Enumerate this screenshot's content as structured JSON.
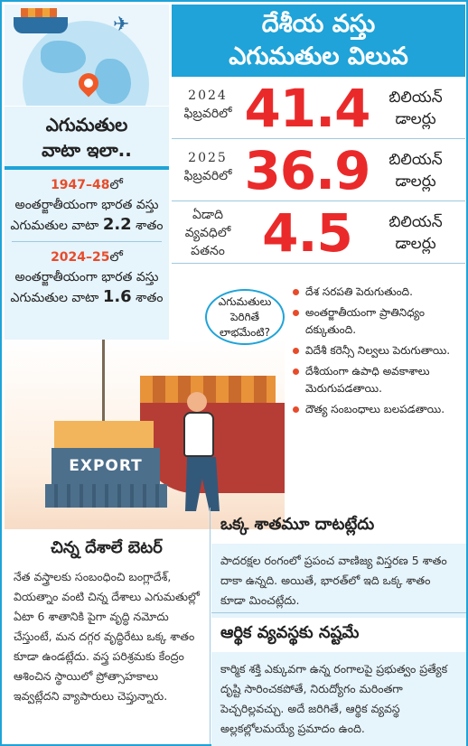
{
  "title": {
    "line1": "దేశీయ వస్తు",
    "line2": "ఎగుమతుల విలువ"
  },
  "stats": [
    {
      "label_year": "2024",
      "label_text": "ఫిబ్రవరిలో",
      "value": "41.4",
      "unit_line1": "బిలియన్",
      "unit_line2": "డాలర్లు"
    },
    {
      "label_year": "2025",
      "label_text": "ఫిబ్రవరిలో",
      "value": "36.9",
      "unit_line1": "బిలియన్",
      "unit_line2": "డాలర్లు"
    },
    {
      "label_year": "ఏడాది",
      "label_text": "వ్యవధిలో పతనం",
      "value": "4.5",
      "unit_line1": "బిలియన్",
      "unit_line2": "డాలర్లు"
    }
  ],
  "share": {
    "head_line1": "ఎగుమతుల",
    "head_line2": "వాటా ఇలా..",
    "items": [
      {
        "year": "1947–48",
        "text": "లో అంతర్జాతీయంగా భారత వస్తు ఎగుమతుల వాటా",
        "num": "2.2",
        "suffix": "శాతం"
      },
      {
        "year": "2024–25",
        "text": "లో అంతర్జాతీయంగా భారత వస్తు ఎగుమతుల వాటా",
        "num": "1.6",
        "suffix": "శాతం"
      }
    ]
  },
  "illustration": {
    "export_label": "EXPORT"
  },
  "bubble": {
    "text": "ఎగుమతులు పెరిగితే లాభమేంటి?"
  },
  "benefits": [
    "దేశ సరపతి పెరుగుతుంది.",
    "అంతర్జాతీయంగా ప్రాతినిధ్యం దక్కుతుంది.",
    "విదేశీ కరెన్సీ నిల్వలు పెరుగుతాయి.",
    "దేశీయంగా ఉపాధి అవకాశాలు మెరుగుపడతాయి.",
    "దౌత్య సంబంధాలు బలపడతాయి."
  ],
  "articles": {
    "small_countries": {
      "head": "చిన్న దేశాలే బెటర్",
      "body": "నేత వస్త్రాలకు సంబంధించి బంగ్లాదేశ్, వియత్నాం వంటి చిన్న దేశాలు ఎగుమతుల్లో ఏటా 6 శాతానికి పైగా వృద్ధి నమోదు చేస్తుంటే, మన దగ్గర వృద్ధిరేటు ఒక్క శాతం కూడా ఉండట్లేదు. వస్త్ర పరిశ్రమకు కేంద్రం ఆశించిన స్థాయిలో ప్రోత్సాహకాలు ఇవ్వట్లేదని వ్యాపారులు చెప్తున్నారు."
    },
    "one_percent": {
      "head": "ఒక్క శాతమూ దాటట్లేదు",
      "body": "పాదరక్షల రంగంలో ప్రపంచ వాణిజ్య విస్తరణ 5 శాతం దాకా ఉన్నది. అయితే, భారత్‌లో ఇది ఒక్క శాతం కూడా మించట్లేదు."
    },
    "economy_loss": {
      "head": "ఆర్థిక వ్యవస్థకు నష్టమే",
      "body": "కార్మిక శక్తి ఎక్కువగా ఉన్న రంగాలపై ప్రభుత్వం ప్రత్యేక దృష్టి సారించకపోతే, నిరుద్యోగం మరింతగా పెచ్చరిల్లవచ్చు. అదే జరిగితే, ఆర్థిక వ్యవస్థ అల్లకల్లోలమయ్యే ప్రమాదం ఉంది."
    }
  },
  "colors": {
    "accent": "#1fa3d8",
    "number_red": "#ea2a2a",
    "year_orange": "#e84b2a",
    "panel_bg": "#e6f4fb"
  }
}
